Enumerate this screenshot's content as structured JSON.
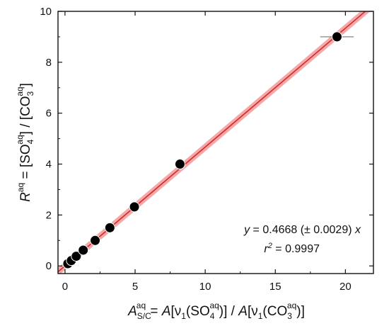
{
  "chart_data": {
    "type": "scatter",
    "xlabel": {
      "A": "A",
      "sub1": "S/C",
      "sup1": "aq",
      "eq": " = ",
      "A2": "A",
      "b1": "[",
      "nu1": "ν",
      "nusub1": "1",
      "p1": "(SO",
      "sub2": "4",
      "sup2": "aq",
      "p2": ")] / ",
      "A3": "A",
      "b2": "[",
      "nu2": "ν",
      "nusub2": "1",
      "p3": "(CO",
      "sub3": "3",
      "sup3": "aq",
      "p4": ")]"
    },
    "ylabel": {
      "R": "R",
      "sup0": "aq",
      "eq": " = [SO",
      "sub1": "4",
      "sup1": "aq",
      "mid": "] / [CO",
      "sub2": "3",
      "sup2": "aq",
      "end": "]"
    },
    "xlim": [
      -0.5,
      22
    ],
    "ylim": [
      -0.3,
      10
    ],
    "xticks": [
      0,
      5,
      10,
      15,
      20
    ],
    "yticks": [
      0,
      2,
      4,
      6,
      8,
      10
    ],
    "grid": false,
    "points": [
      {
        "x": 0.2,
        "y": 0.09
      },
      {
        "x": 0.45,
        "y": 0.21
      },
      {
        "x": 0.8,
        "y": 0.38
      },
      {
        "x": 1.3,
        "y": 0.62
      },
      {
        "x": 2.15,
        "y": 1.0
      },
      {
        "x": 3.2,
        "y": 1.5
      },
      {
        "x": 4.95,
        "y": 2.32
      },
      {
        "x": 8.2,
        "y": 4.0
      },
      {
        "x": 19.4,
        "y": 9.0,
        "xerr": 1.2
      }
    ],
    "fit": {
      "slope": 0.4668,
      "intercept": 0,
      "color": "#d62728",
      "band_color": "#f4a8a8"
    },
    "annotation": {
      "line1_y": "y",
      "line1_mid": " = 0.4668 (± 0.0029) ",
      "line1_x": "x",
      "line2_r": "r",
      "line2_sup": "2",
      "line2_rest": " = 0.9997"
    }
  }
}
